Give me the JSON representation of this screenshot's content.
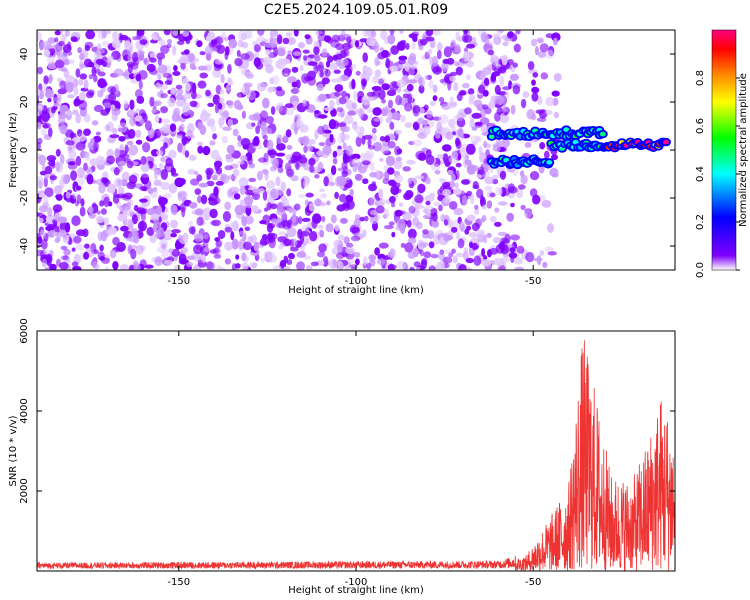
{
  "title": "C2E5.2024.109.05.01.R09",
  "chart_data": [
    {
      "type": "heatmap",
      "xlabel": "Height of straight line (km)",
      "ylabel": "Frequency (Hz)",
      "xlim": [
        -190,
        -10
      ],
      "ylim": [
        -50,
        50
      ],
      "x_ticks": [
        -150,
        -100,
        -50
      ],
      "y_ticks": [
        -40,
        -20,
        0,
        20,
        40
      ],
      "colorbar": {
        "label": "Normalized spectral amplitude",
        "range": [
          0,
          1
        ],
        "ticks": [
          0.0,
          0.2,
          0.4,
          0.6,
          0.8
        ],
        "colormap": [
          "#ffffff",
          "#8000ff",
          "#0000ff",
          "#00ffff",
          "#00ff00",
          "#ffff00",
          "#ff8000",
          "#ff0000",
          "#ff0080"
        ]
      },
      "noise_region_x": [
        -190,
        -55
      ],
      "noise_level": [
        0.05,
        0.3
      ],
      "strong_signal": [
        {
          "x": [
            -62,
            -30
          ],
          "y": 7,
          "amplitude": 0.45
        },
        {
          "x": [
            -62,
            -45
          ],
          "y": -5,
          "amplitude": 0.4
        },
        {
          "x": [
            -45,
            -30
          ],
          "y": 2,
          "amplitude": 0.45
        },
        {
          "x": [
            -30,
            -12
          ],
          "y": 2,
          "amplitude": 0.95
        }
      ]
    },
    {
      "type": "line",
      "xlabel": "Height of straight line (km)",
      "ylabel": "SNR (10 * v/v)",
      "xlim": [
        -190,
        -10
      ],
      "ylim": [
        0,
        6000
      ],
      "x_ticks": [
        -150,
        -100,
        -50
      ],
      "y_ticks": [
        2000,
        4000,
        6000
      ],
      "series_color": "#ee3333",
      "profile": [
        {
          "x": -190,
          "y": 150
        },
        {
          "x": -60,
          "y": 200
        },
        {
          "x": -52,
          "y": 400
        },
        {
          "x": -45,
          "y": 1400
        },
        {
          "x": -40,
          "y": 2200
        },
        {
          "x": -36,
          "y": 6000
        },
        {
          "x": -33,
          "y": 4800
        },
        {
          "x": -28,
          "y": 2400
        },
        {
          "x": -22,
          "y": 2300
        },
        {
          "x": -18,
          "y": 3200
        },
        {
          "x": -14,
          "y": 4500
        },
        {
          "x": -10,
          "y": 3500
        }
      ]
    }
  ]
}
